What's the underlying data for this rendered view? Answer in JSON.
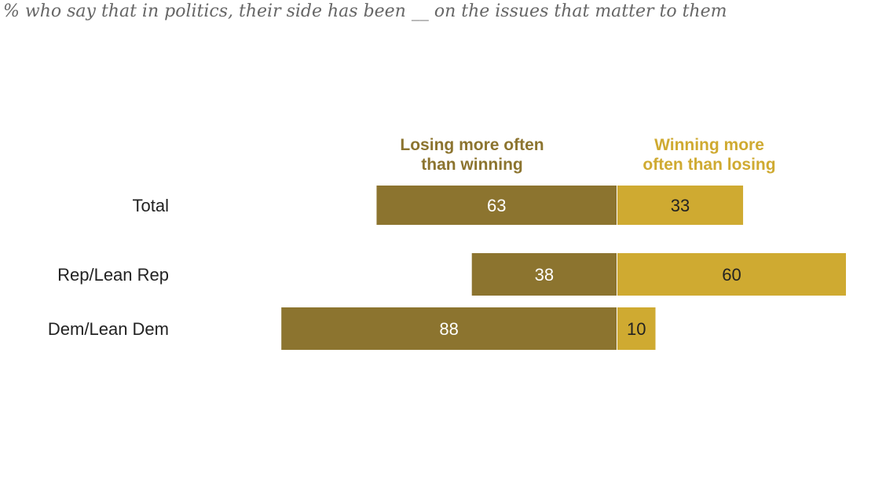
{
  "subtitle": "% who say that in politics, their side has been __ on the issues that matter to them",
  "chart_data": {
    "type": "bar",
    "orientation": "horizontal-diverging",
    "title": "",
    "subtitle": "% who say that in politics, their side has been __ on the issues that matter to them",
    "categories": [
      "Total",
      "Rep/Lean Rep",
      "Dem/Lean Dem"
    ],
    "series": [
      {
        "name": "Losing more often than winning",
        "legend_lines": [
          "Losing more often",
          "than winning"
        ],
        "values": [
          63,
          38,
          88
        ],
        "color": "#8C742F",
        "label_color": "#ffffff"
      },
      {
        "name": "Winning more often than losing",
        "legend_lines": [
          "Winning more",
          "often than losing"
        ],
        "values": [
          33,
          60,
          10
        ],
        "color": "#CFAA31",
        "label_color": "#222222"
      }
    ],
    "xlabel": "",
    "ylabel": "",
    "grid": false,
    "legend_position": "top"
  }
}
